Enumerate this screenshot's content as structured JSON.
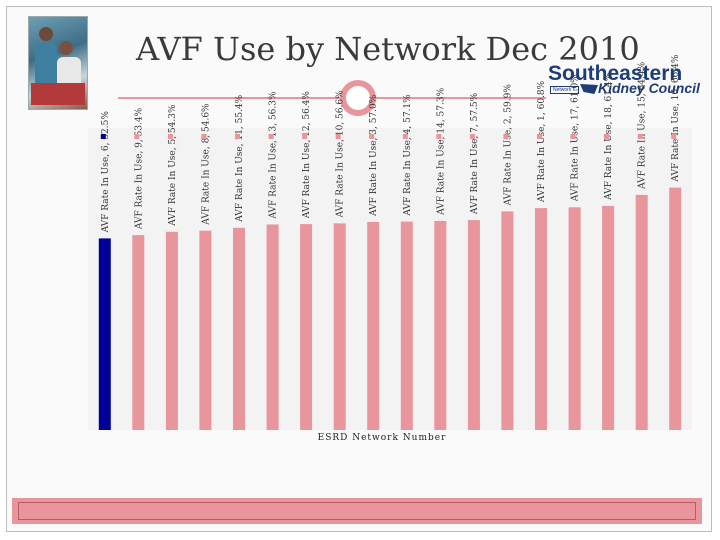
{
  "slide": {
    "title": "AVF Use by Network Dec 2010",
    "logo_main": "Southeastern",
    "logo_sub": "Kidney Council",
    "logo_small": "Network 6"
  },
  "colors": {
    "accent": "#e8959c",
    "bar": "#e8959c",
    "highlight_bar": "#000099",
    "brand": "#1d3c78"
  },
  "chart_data": {
    "type": "bar",
    "title": "AVF Use by Network Dec 2010",
    "xlabel": "ESRD Network Number",
    "ylabel": "",
    "series_name": "AVF Rate In Use",
    "ylim": [
      0,
      100
    ],
    "highlight_category": "6",
    "categories": [
      "6",
      "9",
      "5",
      "8",
      "11",
      "13",
      "12",
      "10",
      "3",
      "4",
      "14",
      "7",
      "2",
      "1",
      "17",
      "18",
      "15",
      "16"
    ],
    "values": [
      52.5,
      53.4,
      54.3,
      54.6,
      55.4,
      56.3,
      56.4,
      56.6,
      57.0,
      57.1,
      57.3,
      57.5,
      59.9,
      60.8,
      61.0,
      61.4,
      64.4,
      66.4
    ],
    "labels": [
      "AVF Rate In Use, 6, 52.5%",
      "AVF Rate In Use, 9, 53.4%",
      "AVF Rate In Use, 5, 54.3%",
      "AVF Rate In Use, 8, 54.6%",
      "AVF Rate In Use, 11, 55.4%",
      "AVF Rate In Use, 13, 56.3%",
      "AVF Rate In Use, 12, 56.4%",
      "AVF Rate In Use, 10, 56.6%",
      "AVF Rate In Use, 3, 57.0%",
      "AVF Rate In Use, 4, 57.1%",
      "AVF Rate In Use, 14, 57.3%",
      "AVF Rate In Use, 7, 57.5%",
      "AVF Rate In Use, 2, 59.9%",
      "AVF Rate In Use, 1, 60.8%",
      "AVF Rate In Use, 17, 61.0%",
      "AVF Rate In Use, 18, 61.4%",
      "AVF Rate In Use, 15, 64.4%",
      "AVF Rate In Use, 16, 66.4%"
    ]
  }
}
